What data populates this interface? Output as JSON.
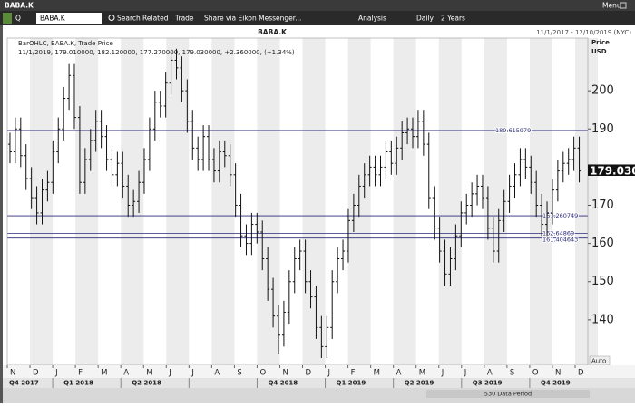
{
  "window": {
    "title": "BABA.K",
    "menu": "Menu"
  },
  "toolbar": {
    "search_prefix": "Q",
    "ric": "BABA.K",
    "items": [
      "Search",
      "Related",
      "Trade",
      "Share via Eikon Messenger...",
      "Analysis",
      "Daily",
      "2 Years"
    ]
  },
  "chart_data": {
    "type": "ohlc",
    "title": "BABA.K",
    "date_range": "11/1/2017 - 12/10/2019 (NYC)",
    "legend_lines": [
      "BarOHLC, BABA.K, Trade Price",
      "11/1/2019, 179.010000, 182.120000, 177.270000, 179.030000, +2.360000, (+1.34%)"
    ],
    "y_axis_label": [
      "Price",
      "USD"
    ],
    "color": "#111111",
    "open": [
      186,
      184,
      190,
      183,
      177,
      172,
      168,
      174,
      176,
      184,
      190,
      198,
      204,
      193,
      176,
      182,
      187,
      192,
      188,
      182,
      178,
      181,
      175,
      170,
      171,
      176,
      182,
      190,
      197,
      196,
      202,
      208,
      206,
      200,
      192,
      185,
      182,
      188,
      182,
      179,
      184,
      183,
      178,
      170,
      162,
      160,
      165,
      163,
      156,
      148,
      141,
      136,
      142,
      150,
      156,
      158,
      150,
      146,
      138,
      133,
      138,
      150,
      156,
      158,
      166,
      170,
      175,
      178,
      180,
      178,
      180,
      184,
      181,
      185,
      189,
      190,
      188,
      192,
      186,
      172,
      164,
      158,
      152,
      156,
      162,
      168,
      170,
      173,
      175,
      172,
      164,
      158,
      166,
      171,
      175,
      178,
      182,
      180,
      176,
      170,
      165,
      168,
      174,
      179,
      181,
      182,
      185
    ],
    "high": [
      189,
      193,
      193,
      186,
      180,
      175,
      177,
      179,
      187,
      193,
      201,
      207,
      207,
      196,
      185,
      190,
      195,
      195,
      191,
      185,
      184,
      184,
      178,
      174,
      179,
      185,
      193,
      200,
      200,
      205,
      211,
      211,
      209,
      203,
      195,
      188,
      191,
      191,
      185,
      187,
      187,
      186,
      181,
      173,
      165,
      168,
      168,
      166,
      159,
      151,
      144,
      145,
      153,
      159,
      161,
      161,
      153,
      149,
      141,
      141,
      153,
      159,
      161,
      169,
      173,
      178,
      181,
      183,
      183,
      183,
      187,
      187,
      188,
      192,
      193,
      193,
      195,
      195,
      189,
      175,
      167,
      161,
      159,
      165,
      171,
      173,
      176,
      178,
      178,
      175,
      167,
      169,
      174,
      178,
      181,
      185,
      185,
      183,
      179,
      173,
      171,
      177,
      182,
      184,
      185,
      188,
      188
    ],
    "low": [
      181,
      181,
      180,
      174,
      169,
      165,
      165,
      171,
      173,
      181,
      187,
      195,
      190,
      173,
      173,
      179,
      184,
      185,
      179,
      175,
      175,
      172,
      167,
      167,
      168,
      173,
      179,
      187,
      193,
      193,
      199,
      203,
      197,
      189,
      182,
      179,
      179,
      179,
      176,
      176,
      180,
      175,
      167,
      159,
      157,
      157,
      160,
      153,
      145,
      138,
      131,
      133,
      139,
      147,
      153,
      147,
      143,
      135,
      130,
      130,
      135,
      147,
      153,
      155,
      163,
      167,
      172,
      175,
      175,
      175,
      177,
      178,
      178,
      182,
      186,
      185,
      185,
      183,
      169,
      161,
      155,
      149,
      149,
      153,
      159,
      165,
      167,
      170,
      169,
      161,
      155,
      155,
      163,
      168,
      172,
      175,
      177,
      173,
      167,
      162,
      162,
      165,
      171,
      176,
      178,
      179,
      176
    ],
    "close": [
      184,
      190,
      183,
      177,
      172,
      168,
      174,
      176,
      184,
      190,
      198,
      204,
      193,
      176,
      182,
      187,
      192,
      188,
      182,
      178,
      181,
      175,
      170,
      171,
      176,
      182,
      190,
      197,
      196,
      202,
      208,
      206,
      200,
      192,
      185,
      182,
      188,
      182,
      179,
      184,
      183,
      178,
      170,
      162,
      160,
      165,
      163,
      156,
      148,
      141,
      136,
      142,
      150,
      156,
      158,
      150,
      146,
      138,
      133,
      138,
      150,
      156,
      158,
      166,
      170,
      175,
      178,
      180,
      178,
      180,
      184,
      181,
      185,
      189,
      190,
      188,
      192,
      186,
      172,
      164,
      158,
      152,
      156,
      162,
      168,
      170,
      173,
      175,
      172,
      164,
      158,
      166,
      171,
      175,
      178,
      182,
      180,
      176,
      170,
      165,
      168,
      174,
      179,
      181,
      182,
      185,
      179
    ],
    "ylim": [
      128.1,
      213.8
    ],
    "yticks": [
      140,
      150,
      160,
      170,
      190,
      200
    ],
    "horizontal_lines": [
      189.615979,
      167.260749,
      162.64869,
      161.404643
    ],
    "line_color": "#2a2a7a",
    "last_price": {
      "value": 179.03,
      "label": "179.030"
    },
    "month_labels": [
      "N",
      "D",
      "J",
      "F",
      "M",
      "A",
      "M",
      "J",
      "J",
      "A",
      "S",
      "O",
      "N",
      "D",
      "J",
      "F",
      "M",
      "A",
      "M",
      "J",
      "J",
      "A",
      "S",
      "O",
      "N",
      "D"
    ],
    "quarter_labels": [
      "Q4 2017",
      "Q1 2018",
      "Q2 2018",
      null,
      "Q4 2018",
      "Q1 2019",
      "Q2 2019",
      "Q3 2019",
      "Q4 2019"
    ],
    "scale_mode": "Auto",
    "status": "530 Data Period"
  }
}
